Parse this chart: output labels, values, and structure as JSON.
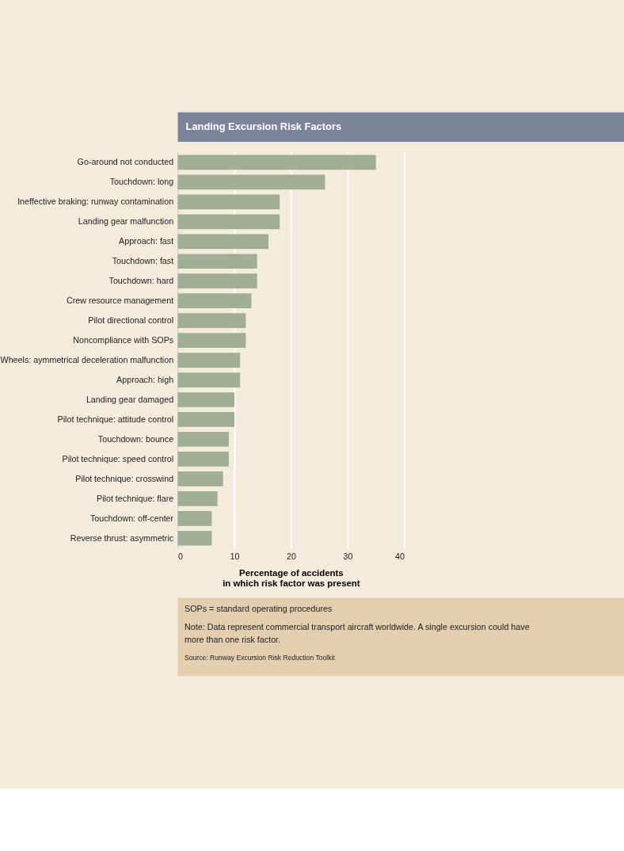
{
  "chart_data": {
    "type": "bar",
    "orientation": "horizontal",
    "title": "Landing Excursion Risk Factors",
    "categories": [
      "Go-around not conducted",
      "Touchdown: long",
      "Ineffective braking: runway contamination",
      "Landing gear malfunction",
      "Approach: fast",
      "Touchdown: fast",
      "Touchdown: hard",
      "Crew resource management",
      "Pilot directional control",
      "Noncompliance with SOPs",
      "Wheels: aymmetrical deceleration malfunction",
      "Approach: high",
      "Landing gear damaged",
      "Pilot technique: attitude control",
      "Touchdown: bounce",
      "Pilot technique: speed control",
      "Pilot technique: crosswind",
      "Pilot technique: flare",
      "Touchdown: off-center",
      "Reverse thrust: asymmetric"
    ],
    "values": [
      35,
      26,
      18,
      18,
      16,
      14,
      14,
      13,
      12,
      12,
      11,
      11,
      10,
      10,
      9,
      9,
      8,
      7,
      6,
      6
    ],
    "color": "#a0ae94",
    "xlim": [
      0,
      40
    ],
    "xticks": [
      0,
      10,
      20,
      30,
      40
    ],
    "grid": "x",
    "xlabel": "Percentage of accidents\nin which risk factor was present",
    "annotations": [
      "SOPs = standard operating procedures",
      "Note: Data represent commercial transport aircraft worldwide. A single excursion could have more than one risk factor.",
      "Source: Runway Excursion Risk Reduction Toolkit"
    ]
  }
}
